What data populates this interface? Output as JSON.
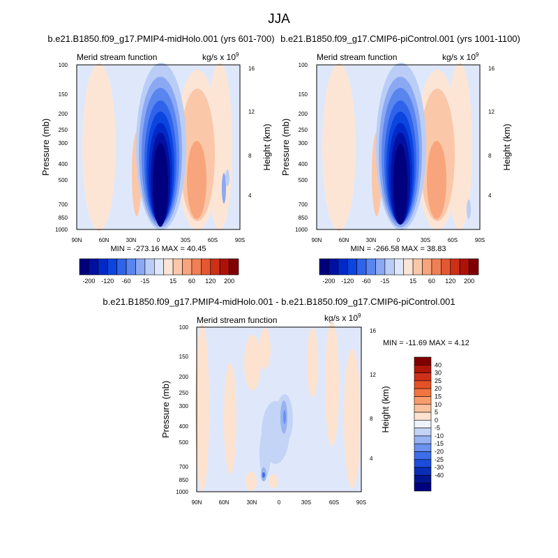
{
  "page_title": "JJA",
  "chart_data": [
    {
      "type": "heatmap",
      "title": "b.e21.B1850.f09_g17.PMIP4-midHolo.001 (yrs 601-700)",
      "subtitle_left": "Merid stream function",
      "units": "kg/s x 10",
      "units_exp": "9",
      "ylabel": "Pressure (mb)",
      "ylabel_right": "Height (km)",
      "x_ticks": [
        "90N",
        "60N",
        "30N",
        "0",
        "30S",
        "60S",
        "90S"
      ],
      "y_ticks": [
        "100",
        "150",
        "200",
        "250",
        "300",
        "400",
        "500",
        "700",
        "850",
        "1000"
      ],
      "y_ticks_right": [
        "16",
        "12",
        "8",
        "4"
      ],
      "stats": "MIN = -273.16   MAX =  40.45",
      "min": -273.16,
      "max": 40.45,
      "colorbar_labels": [
        "-200",
        "-120",
        "-60",
        "-15",
        "15",
        "60",
        "120",
        "200"
      ],
      "colorbar_colors": [
        "#00007f",
        "#0010a0",
        "#0029c8",
        "#0b45e0",
        "#2f63ea",
        "#5985ef",
        "#8ba8f3",
        "#b9cdf7",
        "#dfe8fb",
        "#fde5d5",
        "#fbc7a9",
        "#f8a47c",
        "#f07f55",
        "#e35832",
        "#cd2f17",
        "#ad1208",
        "#7f0000"
      ]
    },
    {
      "type": "heatmap",
      "title": "b.e21.B1850.f09_g17.CMIP6-piControl.001 (yrs 1001-1100)",
      "subtitle_left": "Merid stream function",
      "units": "kg/s x 10",
      "units_exp": "9",
      "ylabel": "Pressure (mb)",
      "ylabel_right": "Height (km)",
      "x_ticks": [
        "90N",
        "60N",
        "30N",
        "0",
        "30S",
        "60S",
        "90S"
      ],
      "y_ticks": [
        "100",
        "150",
        "200",
        "250",
        "300",
        "400",
        "500",
        "700",
        "850",
        "1000"
      ],
      "y_ticks_right": [
        "16",
        "12",
        "8",
        "4"
      ],
      "stats": "MIN = -266.58   MAX =  38.83",
      "min": -266.58,
      "max": 38.83,
      "colorbar_labels": [
        "-200",
        "-120",
        "-60",
        "-15",
        "15",
        "60",
        "120",
        "200"
      ],
      "colorbar_colors": [
        "#00007f",
        "#0010a0",
        "#0029c8",
        "#0b45e0",
        "#2f63ea",
        "#5985ef",
        "#8ba8f3",
        "#b9cdf7",
        "#dfe8fb",
        "#fde5d5",
        "#fbc7a9",
        "#f8a47c",
        "#f07f55",
        "#e35832",
        "#cd2f17",
        "#ad1208",
        "#7f0000"
      ]
    },
    {
      "type": "heatmap",
      "title": "b.e21.B1850.f09_g17.PMIP4-midHolo.001 - b.e21.B1850.f09_g17.CMIP6-piControl.001",
      "subtitle_left": "Merid stream function",
      "units": "kg/s x 10",
      "units_exp": "9",
      "ylabel": "Pressure (mb)",
      "ylabel_right": "Height (km)",
      "x_ticks": [
        "90N",
        "60N",
        "30N",
        "0",
        "30S",
        "60S",
        "90S"
      ],
      "y_ticks": [
        "100",
        "150",
        "200",
        "250",
        "300",
        "400",
        "500",
        "700",
        "850",
        "1000"
      ],
      "y_ticks_right": [
        "16",
        "12",
        "8",
        "4"
      ],
      "stats": "MIN = -11.69   MAX =   4.12",
      "min": -11.69,
      "max": 4.12,
      "colorbar_labels": [
        "40",
        "30",
        "25",
        "20",
        "15",
        "10",
        "5",
        "0",
        "-5",
        "-10",
        "-15",
        "-20",
        "-25",
        "-30",
        "-40"
      ],
      "colorbar_colors": [
        "#7f0000",
        "#b0150a",
        "#d0301a",
        "#e55127",
        "#f27440",
        "#f99c6c",
        "#fbc19e",
        "#fde2cf",
        "#eef2fb",
        "#c3d4f6",
        "#98b3f2",
        "#6a92ee",
        "#3d6eea",
        "#1c4cdc",
        "#0a2db8",
        "#001590",
        "#00007f"
      ]
    }
  ]
}
